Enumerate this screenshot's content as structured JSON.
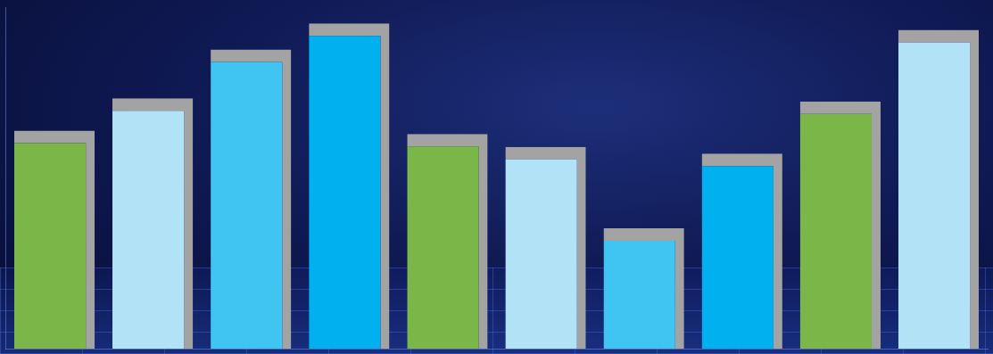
{
  "chart_data": {
    "type": "bar",
    "categories": [
      null,
      null,
      null,
      null,
      null,
      null,
      null,
      null,
      null,
      null
    ],
    "values": [
      67,
      77,
      92,
      100,
      66,
      62,
      37,
      60,
      76,
      98
    ],
    "colors": [
      "#7ab648",
      "#b2e2f6",
      "#40c4f2",
      "#00b0ef",
      "#7ab648",
      "#b2e2f6",
      "#40c4f2",
      "#00b0ef",
      "#7ab648",
      "#b2e2f6"
    ],
    "ylim": [
      0,
      105
    ],
    "grid": false,
    "tick_labels": false
  }
}
